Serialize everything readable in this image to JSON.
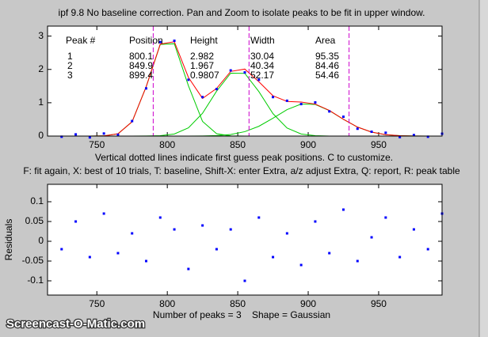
{
  "chart_data": [
    {
      "type": "line",
      "title": "ipf 9.8 No baseline correction. Pan and Zoom to isolate peaks to be fit in upper window.",
      "x": [
        725,
        735,
        745,
        755,
        765,
        775,
        785,
        795,
        805,
        815,
        825,
        835,
        845,
        855,
        865,
        875,
        885,
        895,
        905,
        915,
        925,
        935,
        945,
        955,
        965,
        975,
        985,
        995
      ],
      "series": [
        {
          "color": "#00cc00",
          "marker": "none",
          "values": [
            0,
            0,
            0.0003,
            0.006,
            0.068,
            0.43,
            1.48,
            2.75,
            2.77,
            1.51,
            0.44,
            0.071,
            0.006,
            0.0003,
            0,
            0,
            0,
            0,
            0,
            0,
            0,
            0,
            0,
            0,
            0,
            0,
            0,
            0
          ]
        },
        {
          "color": "#00cc00",
          "marker": "none",
          "values": [
            0,
            0,
            0,
            0,
            0,
            0.0001,
            0.0015,
            0.012,
            0.063,
            0.247,
            0.684,
            1.348,
            1.888,
            1.882,
            1.334,
            0.673,
            0.241,
            0.062,
            0.011,
            0.0014,
            0,
            0,
            0,
            0,
            0,
            0,
            0,
            0
          ]
        },
        {
          "color": "#00cc00",
          "marker": "none",
          "values": [
            0,
            0,
            0,
            0,
            0,
            0,
            0,
            0,
            0.0001,
            0.0007,
            0.0035,
            0.014,
            0.048,
            0.132,
            0.294,
            0.535,
            0.794,
            0.961,
            0.95,
            0.765,
            0.503,
            0.27,
            0.118,
            0.042,
            0.012,
            0.003,
            0.0006,
            0.0001
          ]
        },
        {
          "color": "#ff0000",
          "marker": "none",
          "values": [
            0,
            0,
            0.0003,
            0.006,
            0.068,
            0.43,
            1.48,
            2.76,
            2.83,
            1.76,
            1.13,
            1.43,
            1.94,
            2.01,
            1.63,
            1.21,
            1.04,
            1.02,
            0.96,
            0.77,
            0.503,
            0.27,
            0.118,
            0.042,
            0.012,
            0.003,
            0.0006,
            0.0001
          ]
        },
        {
          "color": "#0000ff",
          "marker": "dot",
          "values": [
            -0.02,
            0.05,
            -0.04,
            0.076,
            0.038,
            0.45,
            1.43,
            2.82,
            2.86,
            1.69,
            1.17,
            1.41,
            1.97,
            1.91,
            1.69,
            1.17,
            1.06,
            0.96,
            1.01,
            0.74,
            0.58,
            0.22,
            0.13,
            0.1,
            -0.03,
            0.03,
            -0.02,
            0.07
          ]
        }
      ],
      "vlines": [
        790,
        858,
        929
      ],
      "vline_color": "#cc00cc",
      "xlim": [
        715,
        995
      ],
      "xticks": [
        750,
        800,
        850,
        900,
        950
      ],
      "ylim": [
        0,
        3.3
      ],
      "yticks": [
        0,
        1,
        2,
        3
      ]
    },
    {
      "type": "scatter",
      "xlabel": "Number of peaks = 3    Shape = Gaussian",
      "ylabel": "Residuals",
      "x": [
        725,
        735,
        745,
        755,
        765,
        775,
        785,
        795,
        805,
        815,
        825,
        835,
        845,
        855,
        865,
        875,
        885,
        895,
        905,
        915,
        925,
        935,
        945,
        955,
        965,
        975,
        985,
        995
      ],
      "values": [
        -0.02,
        0.05,
        -0.04,
        0.07,
        -0.03,
        0.02,
        -0.05,
        0.06,
        0.03,
        -0.07,
        0.04,
        -0.02,
        0.03,
        -0.1,
        0.06,
        -0.04,
        0.02,
        -0.06,
        0.05,
        -0.03,
        0.08,
        -0.05,
        0.01,
        0.06,
        -0.04,
        0.03,
        -0.02,
        0.07
      ],
      "color": "#0000ff",
      "xlim": [
        715,
        995
      ],
      "xticks": [
        750,
        800,
        850,
        900,
        950
      ],
      "ylim": [
        -0.136,
        0.144
      ],
      "yticks": [
        -0.1,
        -0.05,
        0,
        0.05,
        0.1
      ]
    }
  ],
  "peak_table": {
    "header": [
      "Peak #",
      "Position",
      "Height",
      "Width",
      "Area"
    ],
    "rows": [
      [
        "1",
        "800.1",
        "2.982",
        "30.04",
        "95.35"
      ],
      [
        "2",
        "849.9",
        "1.967",
        "40.34",
        "84.46"
      ],
      [
        "3",
        "899.4",
        "0.9807",
        "52.17",
        "54.46"
      ]
    ]
  },
  "notes": [
    "Vertical dotted lines indicate first guess peak positions. C to customize.",
    "F: fit again, X: best of 10 trials, T: baseline, Shift-X: enter Extra, a/z adjust Extra, Q: report, R: peak table"
  ],
  "watermark": "Screencast-O-Matic.com"
}
